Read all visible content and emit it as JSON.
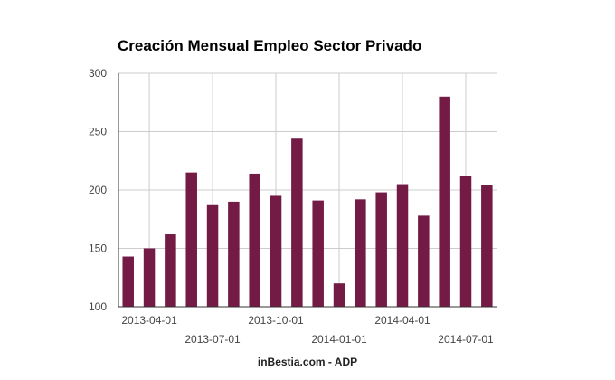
{
  "chart_data": {
    "type": "bar",
    "title": "Creación Mensual Empleo Sector Privado",
    "footer": "inBestia.com - ADP",
    "xlabel": "",
    "ylabel": "",
    "ylim": [
      100,
      300
    ],
    "yticks": [
      100,
      150,
      200,
      250,
      300
    ],
    "grid": true,
    "legend": "none",
    "bar_color": "#731a45",
    "categories": [
      "2013-03",
      "2013-04",
      "2013-05",
      "2013-06",
      "2013-07",
      "2013-08",
      "2013-09",
      "2013-10",
      "2013-11",
      "2013-12",
      "2014-01",
      "2014-02",
      "2014-03",
      "2014-04",
      "2014-05",
      "2014-06",
      "2014-07",
      "2014-08"
    ],
    "values": [
      143,
      150,
      162,
      215,
      187,
      190,
      214,
      195,
      244,
      191,
      120,
      192,
      198,
      205,
      178,
      280,
      212,
      204
    ],
    "xtick_labels": [
      "2013-04-01",
      "2013-07-01",
      "2013-10-01",
      "2014-01-01",
      "2014-04-01",
      "2014-07-01"
    ]
  }
}
